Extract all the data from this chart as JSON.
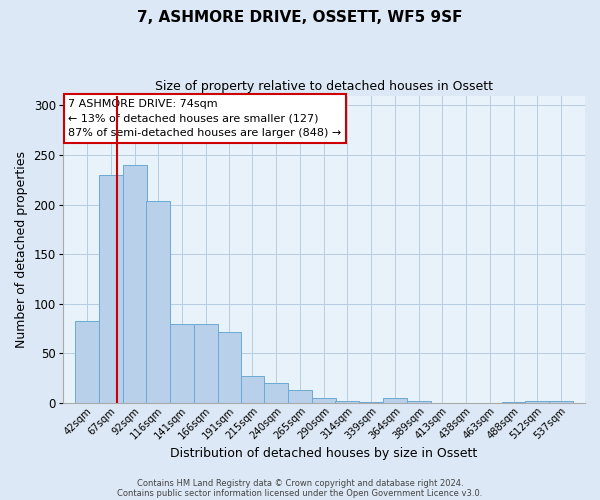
{
  "title": "7, ASHMORE DRIVE, OSSETT, WF5 9SF",
  "subtitle": "Size of property relative to detached houses in Ossett",
  "xlabel": "Distribution of detached houses by size in Ossett",
  "ylabel": "Number of detached properties",
  "bar_labels": [
    "42sqm",
    "67sqm",
    "92sqm",
    "116sqm",
    "141sqm",
    "166sqm",
    "191sqm",
    "215sqm",
    "240sqm",
    "265sqm",
    "290sqm",
    "314sqm",
    "339sqm",
    "364sqm",
    "389sqm",
    "413sqm",
    "438sqm",
    "463sqm",
    "488sqm",
    "512sqm",
    "537sqm"
  ],
  "bar_values": [
    83,
    230,
    240,
    204,
    80,
    80,
    72,
    27,
    20,
    13,
    5,
    2,
    1,
    5,
    2,
    0,
    0,
    0,
    1,
    2,
    2
  ],
  "bar_color": "#b8d0ea",
  "bar_edgecolor": "#6aaad4",
  "background_color": "#dce8f5",
  "plot_background": "#e8f2fa",
  "grid_color": "#b8cce0",
  "vline_x_index": 1,
  "vline_color": "#cc0000",
  "annotation_line1": "7 ASHMORE DRIVE: 74sqm",
  "annotation_line2": "← 13% of detached houses are smaller (127)",
  "annotation_line3": "87% of semi-detached houses are larger (848) →",
  "annotation_box_color": "#cc0000",
  "ylim": [
    0,
    310
  ],
  "yticks": [
    0,
    50,
    100,
    150,
    200,
    250,
    300
  ],
  "footer_line1": "Contains HM Land Registry data © Crown copyright and database right 2024.",
  "footer_line2": "Contains public sector information licensed under the Open Government Licence v3.0.",
  "bin_width": 25
}
